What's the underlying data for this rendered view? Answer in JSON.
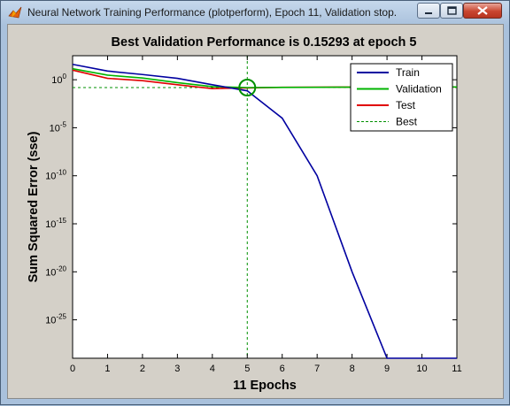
{
  "window": {
    "title": "Neural Network Training Performance (plotperform), Epoch 11, Validation stop."
  },
  "chart_data": {
    "type": "line",
    "title": "Best Validation Performance is 0.15293 at epoch 5",
    "xlabel": "11 Epochs",
    "ylabel": "Sum Squared Error  (sse)",
    "xlim": [
      0,
      11
    ],
    "ylim_log10": [
      -29,
      2.5
    ],
    "y_scale": "log",
    "x_ticks": [
      "0",
      "1",
      "2",
      "3",
      "4",
      "5",
      "6",
      "7",
      "8",
      "9",
      "10",
      "11"
    ],
    "y_ticks": [
      {
        "base": "10",
        "exp": "0"
      },
      {
        "base": "10",
        "exp": "-5"
      },
      {
        "base": "10",
        "exp": "-10"
      },
      {
        "base": "10",
        "exp": "-15"
      },
      {
        "base": "10",
        "exp": "-20"
      },
      {
        "base": "10",
        "exp": "-25"
      }
    ],
    "y_tick_exponents": [
      0,
      -5,
      -10,
      -15,
      -20,
      -25
    ],
    "x": [
      0,
      1,
      2,
      3,
      4,
      5,
      6,
      7,
      8,
      9,
      10,
      11
    ],
    "series": [
      {
        "name": "Train",
        "color": "#0000a0",
        "values": [
          40,
          8,
          3.5,
          1.4,
          0.3,
          0.07,
          0.0001,
          1e-10,
          1e-20,
          1e-29,
          1e-29,
          1e-29
        ]
      },
      {
        "name": "Validation",
        "color": "#00b400",
        "values": [
          14,
          3.0,
          1.5,
          0.5,
          0.19,
          0.15293,
          0.16,
          0.165,
          0.168,
          0.17,
          0.172,
          0.175
        ]
      },
      {
        "name": "Test",
        "color": "#e00000",
        "values": [
          10,
          1.4,
          0.8,
          0.3,
          0.12,
          0.14,
          0.165,
          0.17,
          0.172,
          0.174,
          0.176,
          0.178
        ]
      }
    ],
    "best": {
      "name": "Best",
      "epoch": 5,
      "value": 0.15293,
      "color": "#009000"
    },
    "legend": {
      "position": "top-right",
      "entries": [
        "Train",
        "Validation",
        "Test",
        "Best"
      ]
    }
  }
}
